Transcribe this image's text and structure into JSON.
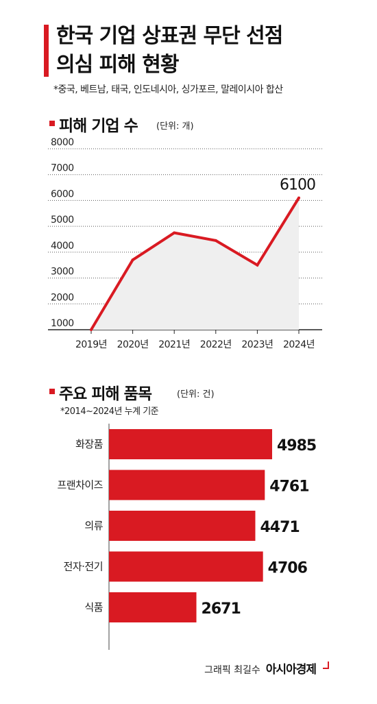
{
  "title_lines": [
    "한국 기업 상표권 무단 선점",
    "의심 피해 현황"
  ],
  "note_top": "*중국, 베트남, 태국, 인도네시아, 싱가포르, 말레이시아 합산",
  "section1": {
    "title": "피해 기업 수",
    "unit": "(단위: 개)"
  },
  "section2": {
    "title": "주요 피해 품목",
    "unit": "(단위: 건)",
    "note": "*2014~2024년 누계 기준"
  },
  "credit": {
    "by": "그래픽 최길수",
    "brand": "아시아경제"
  },
  "colors": {
    "accent": "#d91a22",
    "area": "#efefef",
    "grid": "#555555"
  },
  "chart_data": [
    {
      "type": "line",
      "title": "피해 기업 수",
      "ylabel": "(단위: 개)",
      "categories": [
        "2019년",
        "2020년",
        "2021년",
        "2022년",
        "2023년",
        "2024년"
      ],
      "values": [
        1000,
        3700,
        4750,
        4450,
        3500,
        6100
      ],
      "yticks": [
        1000,
        2000,
        3000,
        4000,
        5000,
        6000,
        7000,
        8000
      ],
      "ylim": [
        1000,
        8000
      ],
      "data_labels": [
        {
          "index": 5,
          "text": "6100"
        }
      ],
      "grid": true
    },
    {
      "type": "bar",
      "orientation": "horizontal",
      "title": "주요 피해 품목",
      "ylabel": "(단위: 건)",
      "categories": [
        "화장품",
        "프랜차이즈",
        "의류",
        "전자·전기",
        "식품"
      ],
      "values": [
        4985,
        4761,
        4471,
        4706,
        2671
      ],
      "value_labels": [
        "4985",
        "4761",
        "4471",
        "4706",
        "2671"
      ]
    }
  ]
}
